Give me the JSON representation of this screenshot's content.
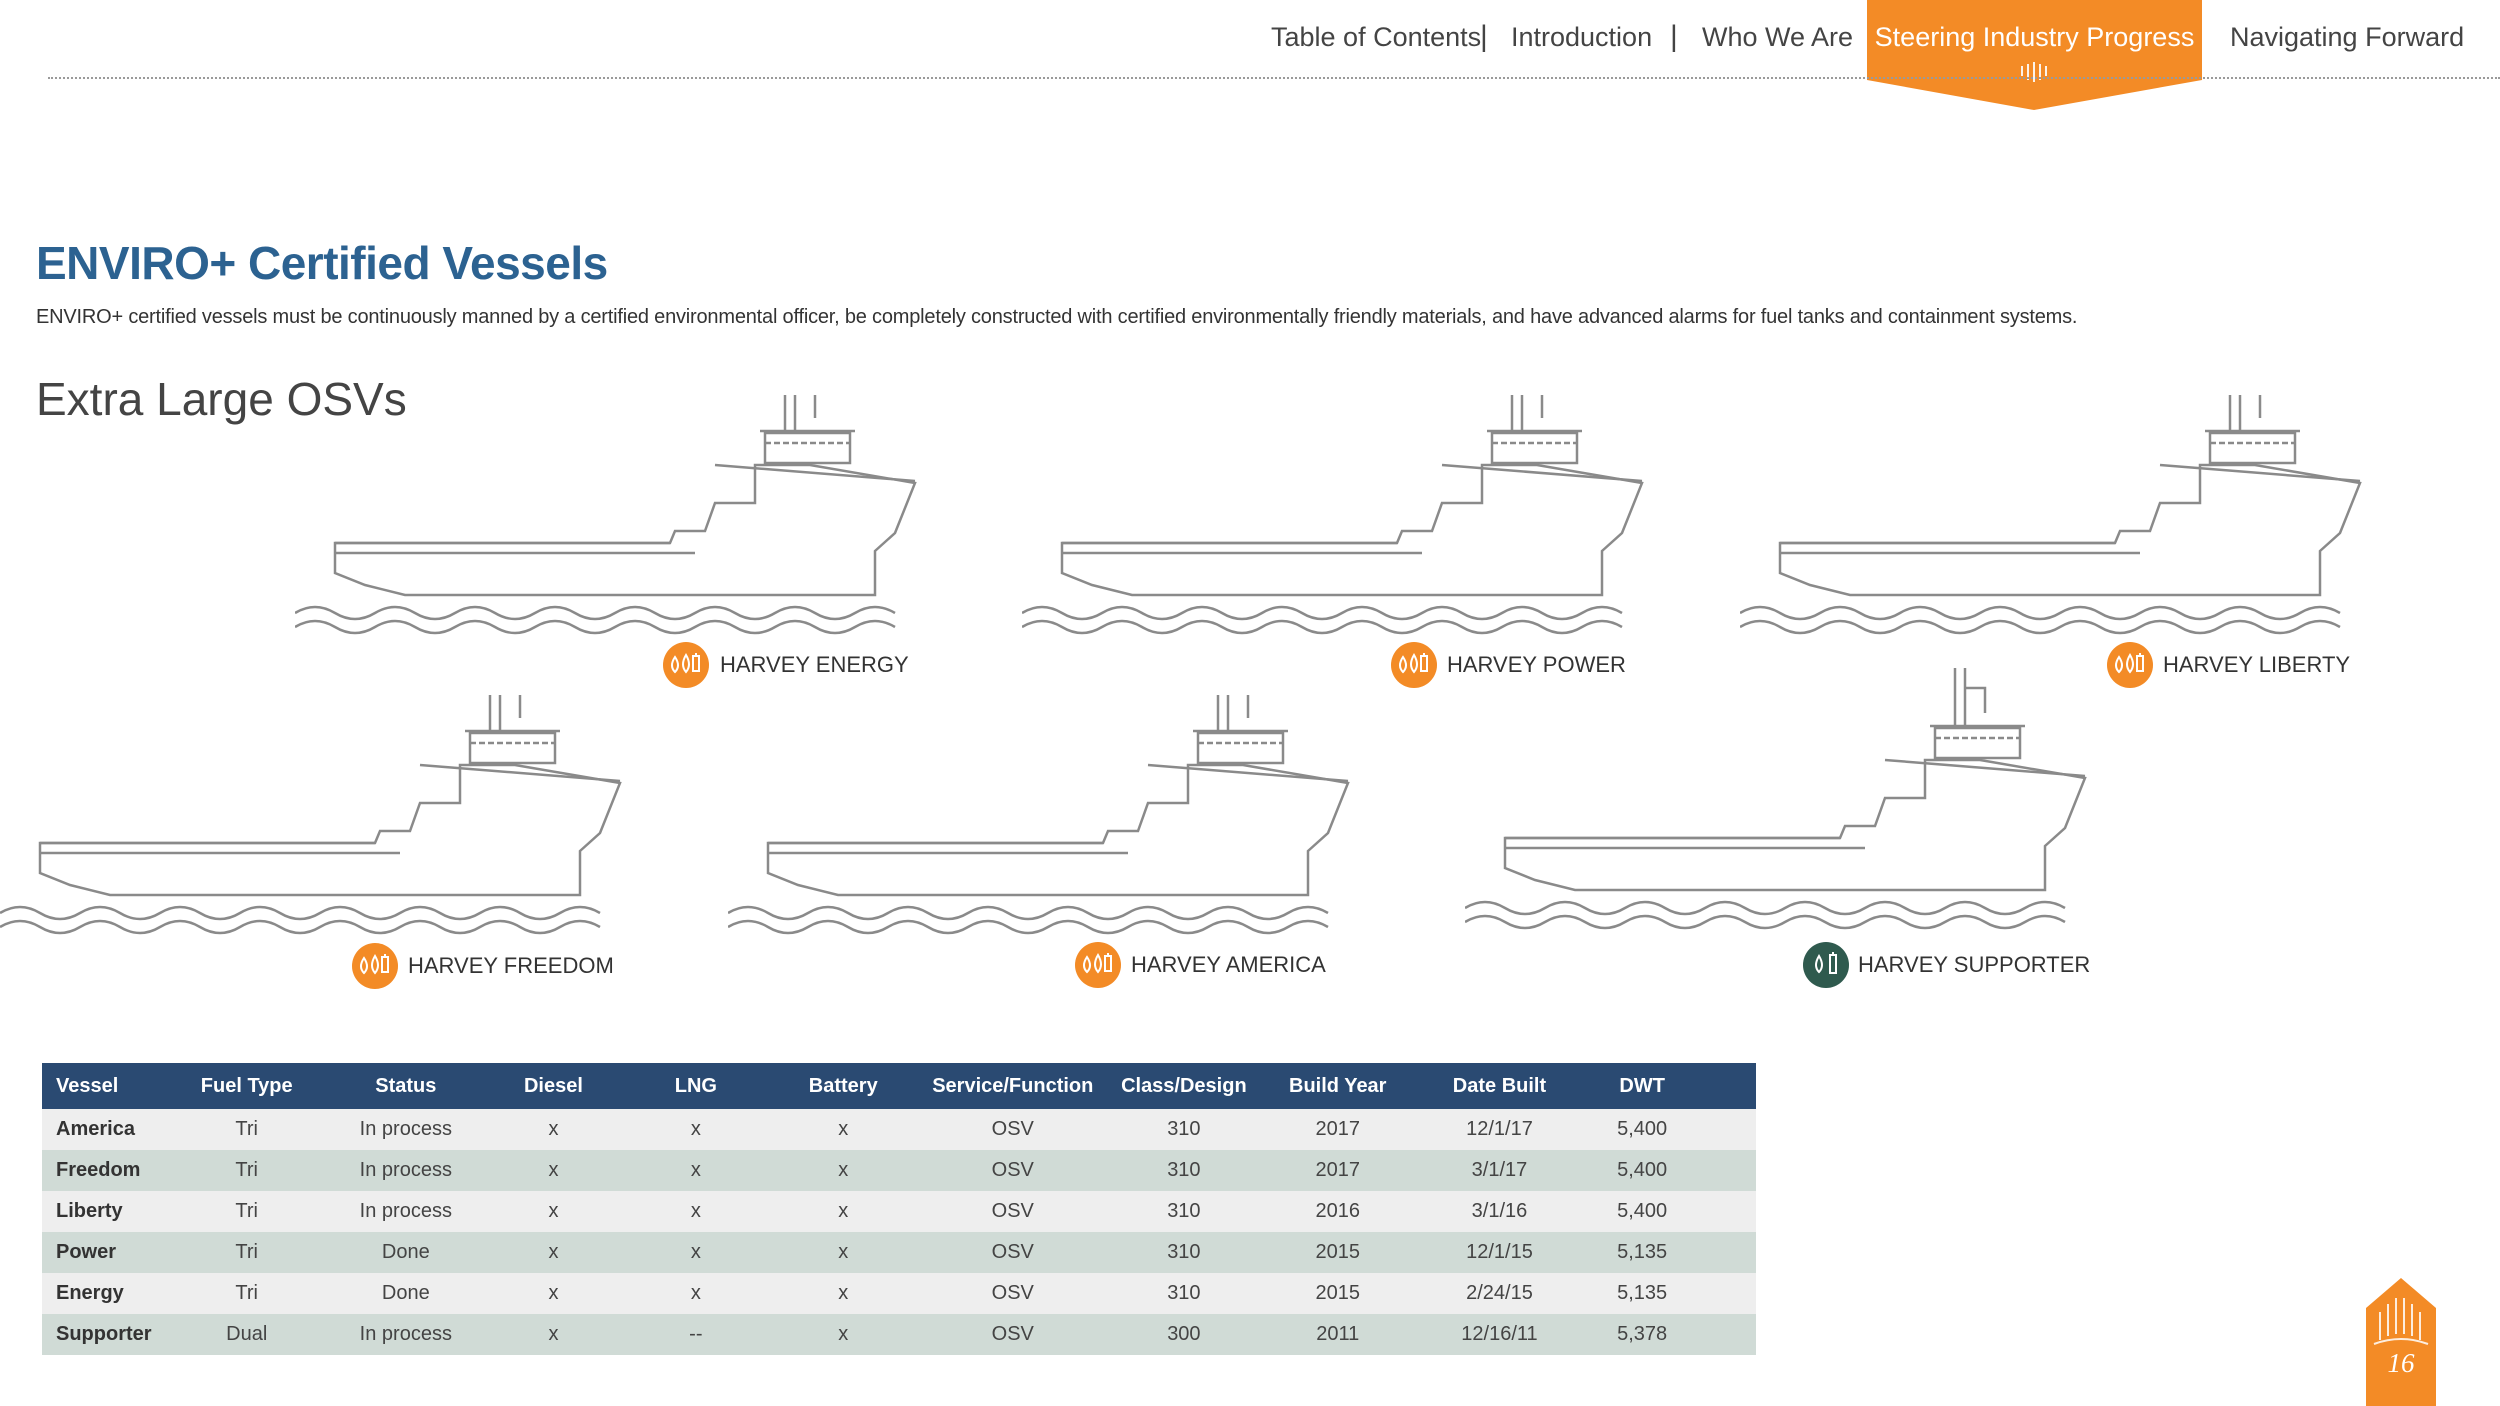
{
  "nav": {
    "items": [
      "Table of Contents",
      "Introduction",
      "Who We Are",
      "Steering Industry Progress",
      "Navigating Forward"
    ],
    "separator": "|"
  },
  "colors": {
    "accent": "#f38b26",
    "title_blue": "#2c6291",
    "table_header": "#2a4a72",
    "badge_dark": "#2f5a4e"
  },
  "page": {
    "title": "ENVIRO+ Certified Vessels",
    "description": "ENVIRO+ certified vessels must be continuously manned by a certified environmental officer, be completely constructed with certified environmentally friendly materials, and have advanced alarms for fuel tanks and containment systems.",
    "subtitle": "Extra Large OSVs",
    "page_number": "16"
  },
  "vessels": [
    {
      "name": "HARVEY ENERGY",
      "icon": "tri-fuel-icon"
    },
    {
      "name": "HARVEY POWER",
      "icon": "tri-fuel-icon"
    },
    {
      "name": "HARVEY LIBERTY",
      "icon": "tri-fuel-icon"
    },
    {
      "name": "HARVEY FREEDOM",
      "icon": "tri-fuel-icon"
    },
    {
      "name": "HARVEY AMERICA",
      "icon": "tri-fuel-icon"
    },
    {
      "name": "HARVEY SUPPORTER",
      "icon": "dual-fuel-icon"
    }
  ],
  "table": {
    "headers": [
      "Vessel",
      "Fuel Type",
      "Status",
      "Diesel",
      "LNG",
      "Battery",
      "Service/Function",
      "Class/Design",
      "Build Year",
      "Date Built",
      "DWT"
    ],
    "rows": [
      [
        "America",
        "Tri",
        "In process",
        "x",
        "x",
        "x",
        "OSV",
        "310",
        "2017",
        "12/1/17",
        "5,400"
      ],
      [
        "Freedom",
        "Tri",
        "In process",
        "x",
        "x",
        "x",
        "OSV",
        "310",
        "2017",
        "3/1/17",
        "5,400"
      ],
      [
        "Liberty",
        "Tri",
        "In process",
        "x",
        "x",
        "x",
        "OSV",
        "310",
        "2016",
        "3/1/16",
        "5,400"
      ],
      [
        "Power",
        "Tri",
        "Done",
        "x",
        "x",
        "x",
        "OSV",
        "310",
        "2015",
        "12/1/15",
        "5,135"
      ],
      [
        "Energy",
        "Tri",
        "Done",
        "x",
        "x",
        "x",
        "OSV",
        "310",
        "2015",
        "2/24/15",
        "5,135"
      ],
      [
        "Supporter",
        "Dual",
        "In process",
        "x",
        "--",
        "x",
        "OSV",
        "300",
        "2011",
        "12/16/11",
        "5,378"
      ]
    ]
  }
}
